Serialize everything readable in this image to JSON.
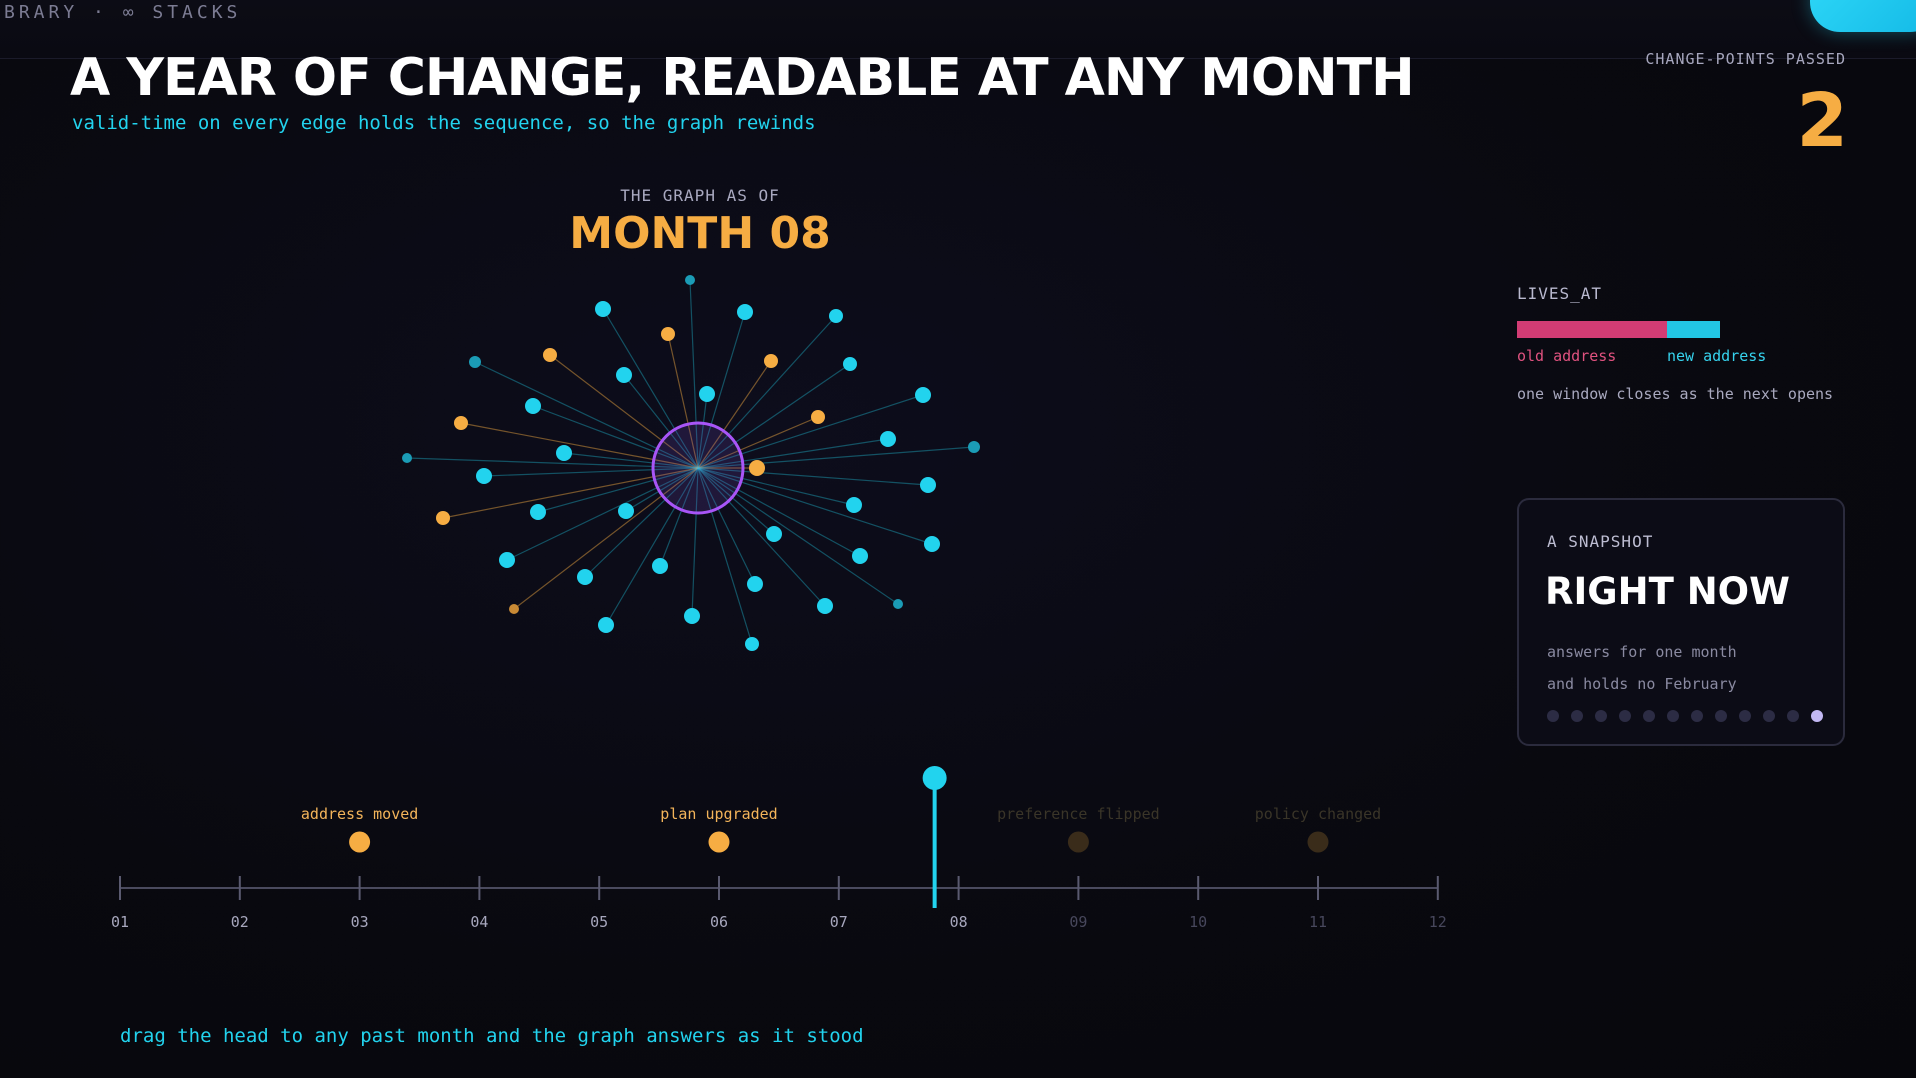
{
  "brand": "BRARY · ∞ STACKS",
  "header": {
    "title": "A YEAR OF CHANGE, READABLE AT ANY MONTH",
    "subtitle": "valid-time on every edge holds the sequence, so the graph rewinds"
  },
  "change_points": {
    "label": "CHANGE-POINTS PASSED",
    "value": "2"
  },
  "graph": {
    "as_of_label": "THE GRAPH AS OF",
    "month_label": "MONTH 08"
  },
  "relation": {
    "label": "LIVES_AT",
    "old_label": "old address",
    "new_label": "new address",
    "note": "one window closes as the next opens",
    "old_share": 0.74,
    "colors": {
      "old": "#d23c74",
      "new": "#22c6e4"
    }
  },
  "snapshot": {
    "kicker": "A SNAPSHOT",
    "title": "RIGHT NOW",
    "body_line1": "answers for one month",
    "body_line2": "and holds no February",
    "dot_count": 12,
    "active_dot": 12
  },
  "timeline": {
    "months": [
      "01",
      "02",
      "03",
      "04",
      "05",
      "06",
      "07",
      "08",
      "09",
      "10",
      "11",
      "12"
    ],
    "current_month": 7.8,
    "events": [
      {
        "label": "address moved",
        "month": 3,
        "passed": true
      },
      {
        "label": "plan upgraded",
        "month": 6,
        "passed": true
      },
      {
        "label": "preference flipped",
        "month": 9,
        "passed": false
      },
      {
        "label": "policy changed",
        "month": 11,
        "passed": false
      }
    ]
  },
  "hint": "drag the head to any past month and the graph answers as it stood",
  "colors": {
    "accent": "#22d3ee",
    "amber": "#f6ad43",
    "hub": "#a855f7",
    "pink": "#d23c74"
  }
}
